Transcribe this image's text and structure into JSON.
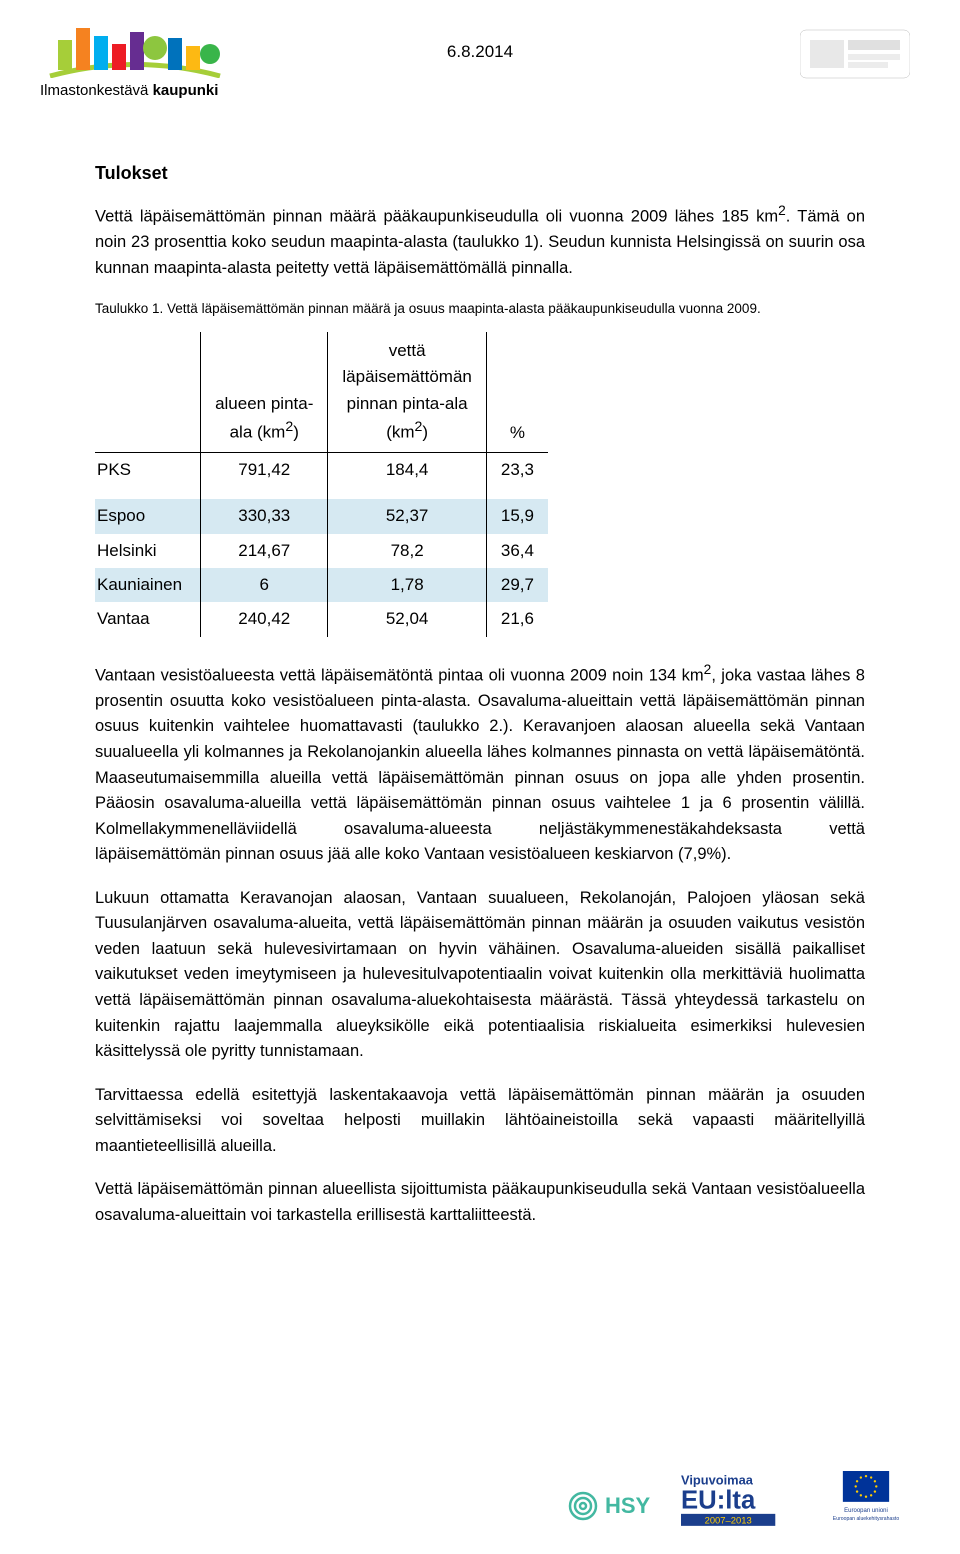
{
  "header": {
    "date": "6.8.2014",
    "logo_text_1": "Ilmastonkestävä",
    "logo_text_2": "kaupunki",
    "skyline_colors": [
      "#a6ce39",
      "#f58220",
      "#00aeef",
      "#ed1c24",
      "#662d91",
      "#8dc63f",
      "#0072bc",
      "#fdb913",
      "#39b54a"
    ]
  },
  "section_h": "Tulokset",
  "p1_a": "Vettä läpäisemättömän pinnan määrä pääkaupunkiseudulla oli vuonna 2009 lähes 185 km",
  "p1_sup": "2",
  "p1_b": ". Tämä on noin 23 prosenttia koko seudun maapinta-alasta (taulukko 1). Seudun kunnista Helsingissä on suurin osa kunnan maapinta-alasta peitetty vettä läpäisemättömällä pinnalla.",
  "caption": "Taulukko 1. Vettä läpäisemättömän pinnan määrä ja osuus maapinta-alasta pääkaupunkiseudulla vuonna 2009.",
  "table": {
    "col1_a": "alueen pinta-",
    "col1_b": "ala (km",
    "col1_sup": "2",
    "col1_c": ")",
    "col2_a": "vettä",
    "col2_b": "läpäisemättömän",
    "col2_c": "pinnan pinta-ala",
    "col2_d": "(km",
    "col2_sup": "2",
    "col2_e": ")",
    "col3": "%",
    "rows": [
      {
        "label": "PKS",
        "c1": "791,42",
        "c2": "184,4",
        "c3": "23,3",
        "hl": false
      },
      {
        "label": "Espoo",
        "c1": "330,33",
        "c2": "52,37",
        "c3": "15,9",
        "hl": true
      },
      {
        "label": "Helsinki",
        "c1": "214,67",
        "c2": "78,2",
        "c3": "36,4",
        "hl": false
      },
      {
        "label": "Kauniainen",
        "c1": "6",
        "c2": "1,78",
        "c3": "29,7",
        "hl": true
      },
      {
        "label": "Vantaa",
        "c1": "240,42",
        "c2": "52,04",
        "c3": "21,6",
        "hl": false
      }
    ],
    "hl_color": "#d6e9f2"
  },
  "p2_a": "Vantaan vesistöalueesta vettä läpäisemätöntä pintaa oli vuonna 2009 noin 134 km",
  "p2_sup": "2",
  "p2_b": ", joka vastaa lähes 8 prosentin osuutta koko vesistöalueen pinta-alasta. Osavaluma-alueittain vettä läpäisemättömän pinnan osuus kuitenkin vaihtelee huomattavasti (taulukko 2.). Keravanjoen alaosan alueella sekä Vantaan suualueella yli kolmannes ja Rekolanojankin alueella lähes kolmannes pinnasta on vettä läpäisemätöntä. Maaseutumaisemmilla alueilla vettä läpäisemättömän pinnan osuus on jopa alle yhden prosentin. Pääosin osavaluma-alueilla vettä läpäisemättömän pinnan osuus vaihtelee 1 ja 6 prosentin välillä. Kolmellakymmenelläviidellä osavaluma-alueesta neljästäkymmenestäkahdeksasta vettä läpäisemättömän pinnan osuus jää alle koko Vantaan vesistöalueen keskiarvon (7,9%).",
  "p3": "Lukuun ottamatta Keravanojan alaosan, Vantaan suualueen, Rekolanoján, Palojoen yläosan sekä Tuusulanjärven osavaluma-alueita, vettä läpäisemättömän pinnan määrän ja osuuden vaikutus vesistön veden laatuun sekä hulevesivirtamaan on hyvin vähäinen. Osavaluma-alueiden sisällä paikalliset vaikutukset veden imeytymiseen ja hulevesitulvapotentiaalin voivat kuitenkin olla merkittäviä huolimatta vettä läpäisemättömän pinnan osavaluma-aluekohtaisesta määrästä. Tässä yhteydessä tarkastelu on kuitenkin rajattu laajemmalla alueyksikölle eikä potentiaalisia riskialueita esimerkiksi hulevesien käsittelyssä ole pyritty tunnistamaan.",
  "p4": "Tarvittaessa edellä esitettyjä laskentakaavoja vettä läpäisemättömän pinnan määrän ja osuuden selvittämiseksi voi soveltaa helposti muillakin lähtöaineistoilla sekä vapaasti määritellyillä maantieteellisillä alueilla.",
  "p5": "Vettä läpäisemättömän pinnan alueellista sijoittumista pääkaupunkiseudulla sekä Vantaan vesistöalueella osavaluma-alueittain voi tarkastella erillisestä karttaliitteestä.",
  "footer": {
    "hsy_label": "HSY",
    "hsy_color": "#43b8a1",
    "vipu_l1": "Vipuvoimaa",
    "vipu_l2": "EU:lta",
    "vipu_l3": "2007–2013",
    "vipu_color": "#1b3e8c",
    "eu_l1": "Euroopan unioni",
    "eu_l2": "Euroopan aluekehitysrahasto",
    "eu_flag": "#003399",
    "eu_star": "#ffcc00"
  }
}
